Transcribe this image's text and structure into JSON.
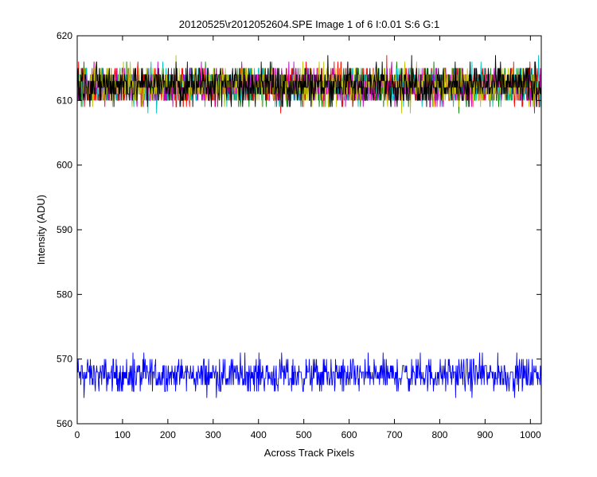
{
  "chart_data": {
    "type": "line",
    "title": "20120525\\r2012052604.SPE  Image 1 of 6  I:0.01  S:6  G:1",
    "xlabel": "Across Track Pixels",
    "ylabel": "Intensity (ADU)",
    "xlim": [
      0,
      1024
    ],
    "ylim": [
      560,
      620
    ],
    "xticks": [
      0,
      100,
      200,
      300,
      400,
      500,
      600,
      700,
      800,
      900,
      1000
    ],
    "yticks": [
      560,
      570,
      580,
      590,
      600,
      610,
      620
    ],
    "grid": false,
    "legend": "none",
    "series": [
      {
        "color": "#0000ff",
        "mean": 567.5,
        "spread": 1.3,
        "range": [
          564,
          571
        ]
      },
      {
        "color": "#008000",
        "mean": 612.3,
        "spread": 1.4,
        "range": [
          608,
          617
        ]
      },
      {
        "color": "#ff0000",
        "mean": 612.3,
        "spread": 1.4,
        "range": [
          608,
          617
        ]
      },
      {
        "color": "#00bfbf",
        "mean": 612.3,
        "spread": 1.4,
        "range": [
          608,
          617
        ]
      },
      {
        "color": "#bf00bf",
        "mean": 612.3,
        "spread": 1.4,
        "range": [
          608,
          617
        ]
      },
      {
        "color": "#bfbf00",
        "mean": 612.3,
        "spread": 1.4,
        "range": [
          608,
          617
        ]
      },
      {
        "color": "#000000",
        "mean": 612.5,
        "spread": 1.5,
        "range": [
          608,
          619
        ]
      }
    ]
  }
}
